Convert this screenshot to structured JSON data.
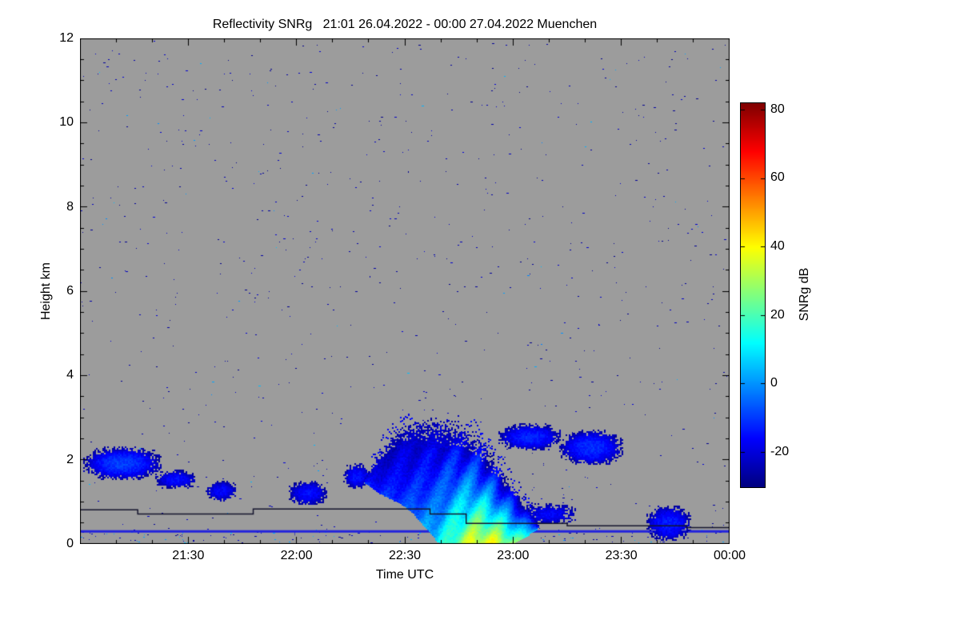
{
  "title": "Reflectivity SNRg   21:01 26.04.2022 - 00:00 27.04.2022 Muenchen",
  "chart_data": {
    "type": "heatmap",
    "title": "Reflectivity SNRg   21:01 26.04.2022 - 00:00 27.04.2022 Muenchen",
    "station": "Muenchen",
    "time_start": "21:01 26.04.2022",
    "time_end": "00:00 27.04.2022",
    "xlabel": "Time UTC",
    "ylabel": "Height km",
    "x_range_minutes": [
      0,
      180
    ],
    "x_ticks": [
      {
        "t": 30,
        "label": "21:30"
      },
      {
        "t": 60,
        "label": "22:00"
      },
      {
        "t": 90,
        "label": "22:30"
      },
      {
        "t": 120,
        "label": "23:00"
      },
      {
        "t": 150,
        "label": "23:30"
      },
      {
        "t": 180,
        "label": "00:00"
      }
    ],
    "x_minor_step_min": 10,
    "ylim": [
      0,
      12
    ],
    "y_ticks": [
      0,
      2,
      4,
      6,
      8,
      10,
      12
    ],
    "y_minor_step_km": 0.5,
    "colorbar": {
      "label": "SNRg dB",
      "min": -30,
      "max": 82,
      "ticks": [
        -20,
        0,
        20,
        40,
        60,
        80
      ],
      "colormap": "jet"
    },
    "background_color": "#9c9c9c",
    "noise": {
      "seed": 1337,
      "count": 780,
      "bottom_extra": 170
    },
    "surface_line": {
      "height_km": 0.3,
      "color": "#2222dd",
      "width": 3
    },
    "step_line": {
      "color": "#15152e",
      "width": 1.5,
      "points": [
        [
          0,
          0.82
        ],
        [
          16,
          0.82
        ],
        [
          16,
          0.72
        ],
        [
          48,
          0.72
        ],
        [
          48,
          0.84
        ],
        [
          97,
          0.84
        ],
        [
          97,
          0.72
        ],
        [
          107,
          0.72
        ],
        [
          107,
          0.5
        ],
        [
          135,
          0.5
        ],
        [
          135,
          0.44
        ],
        [
          168,
          0.44
        ],
        [
          168,
          0.4
        ],
        [
          180,
          0.4
        ]
      ]
    },
    "features": [
      {
        "name": "stratus-2100",
        "t0": 1,
        "t1": 22,
        "h0": 1.55,
        "h1": 2.3,
        "peak_dB": -9,
        "edge_dB": -26,
        "patchiness": 0.45
      },
      {
        "name": "stratus-2122",
        "t0": 21,
        "t1": 32,
        "h0": 1.35,
        "h1": 1.75,
        "peak_dB": -15,
        "edge_dB": -26,
        "patchiness": 0.55
      },
      {
        "name": "patch-2135",
        "t0": 35,
        "t1": 43,
        "h0": 1.05,
        "h1": 1.5,
        "peak_dB": -16,
        "edge_dB": -26,
        "patchiness": 0.5
      },
      {
        "name": "patch-2200",
        "t0": 58,
        "t1": 68,
        "h0": 0.95,
        "h1": 1.5,
        "peak_dB": -15,
        "edge_dB": -26,
        "patchiness": 0.5
      },
      {
        "name": "leading-edge-2214",
        "t0": 73,
        "t1": 80,
        "h0": 1.35,
        "h1": 1.9,
        "peak_dB": -14,
        "edge_dB": -26,
        "patchiness": 0.5
      },
      {
        "name": "anvil-2300",
        "t0": 116,
        "t1": 133,
        "h0": 2.25,
        "h1": 2.85,
        "peak_dB": -12,
        "edge_dB": -26,
        "patchiness": 0.45
      },
      {
        "name": "anvil-2315",
        "t0": 133,
        "t1": 150,
        "h0": 1.9,
        "h1": 2.7,
        "peak_dB": -11,
        "edge_dB": -26,
        "patchiness": 0.42
      },
      {
        "name": "virga-flecks-2305",
        "t0": 123,
        "t1": 137,
        "h0": 0.5,
        "h1": 0.95,
        "peak_dB": -16,
        "edge_dB": -26,
        "patchiness": 0.8
      },
      {
        "name": "low-cloud-2340",
        "t0": 157,
        "t1": 169,
        "h0": 0.12,
        "h1": 0.9,
        "peak_dB": -13,
        "edge_dB": -26,
        "patchiness": 0.5
      }
    ],
    "main_cell": {
      "name": "precipitation-cell-2220-2305",
      "t0": 79,
      "t1": 127,
      "top_profile": [
        [
          79,
          1.6
        ],
        [
          83,
          2.2
        ],
        [
          88,
          2.7
        ],
        [
          93,
          2.95
        ],
        [
          99,
          3.0
        ],
        [
          104,
          2.9
        ],
        [
          109,
          2.65
        ],
        [
          114,
          2.1
        ],
        [
          118,
          1.6
        ],
        [
          122,
          1.1
        ],
        [
          127,
          0.45
        ]
      ],
      "bottom_profile": [
        [
          79,
          1.45
        ],
        [
          83,
          1.2
        ],
        [
          88,
          1.0
        ],
        [
          92,
          0.75
        ],
        [
          96,
          0.35
        ],
        [
          99,
          0.05
        ],
        [
          101,
          0
        ],
        [
          117,
          0
        ],
        [
          120,
          0.05
        ],
        [
          123,
          0.15
        ],
        [
          127,
          0.4
        ]
      ],
      "peak_dB": 40,
      "edge_dB": -24,
      "core_t": 112,
      "core_width": 14,
      "streak_period_min": 7,
      "streak_slope_min_per_km": 5,
      "streak_amp_dB": 7
    }
  }
}
